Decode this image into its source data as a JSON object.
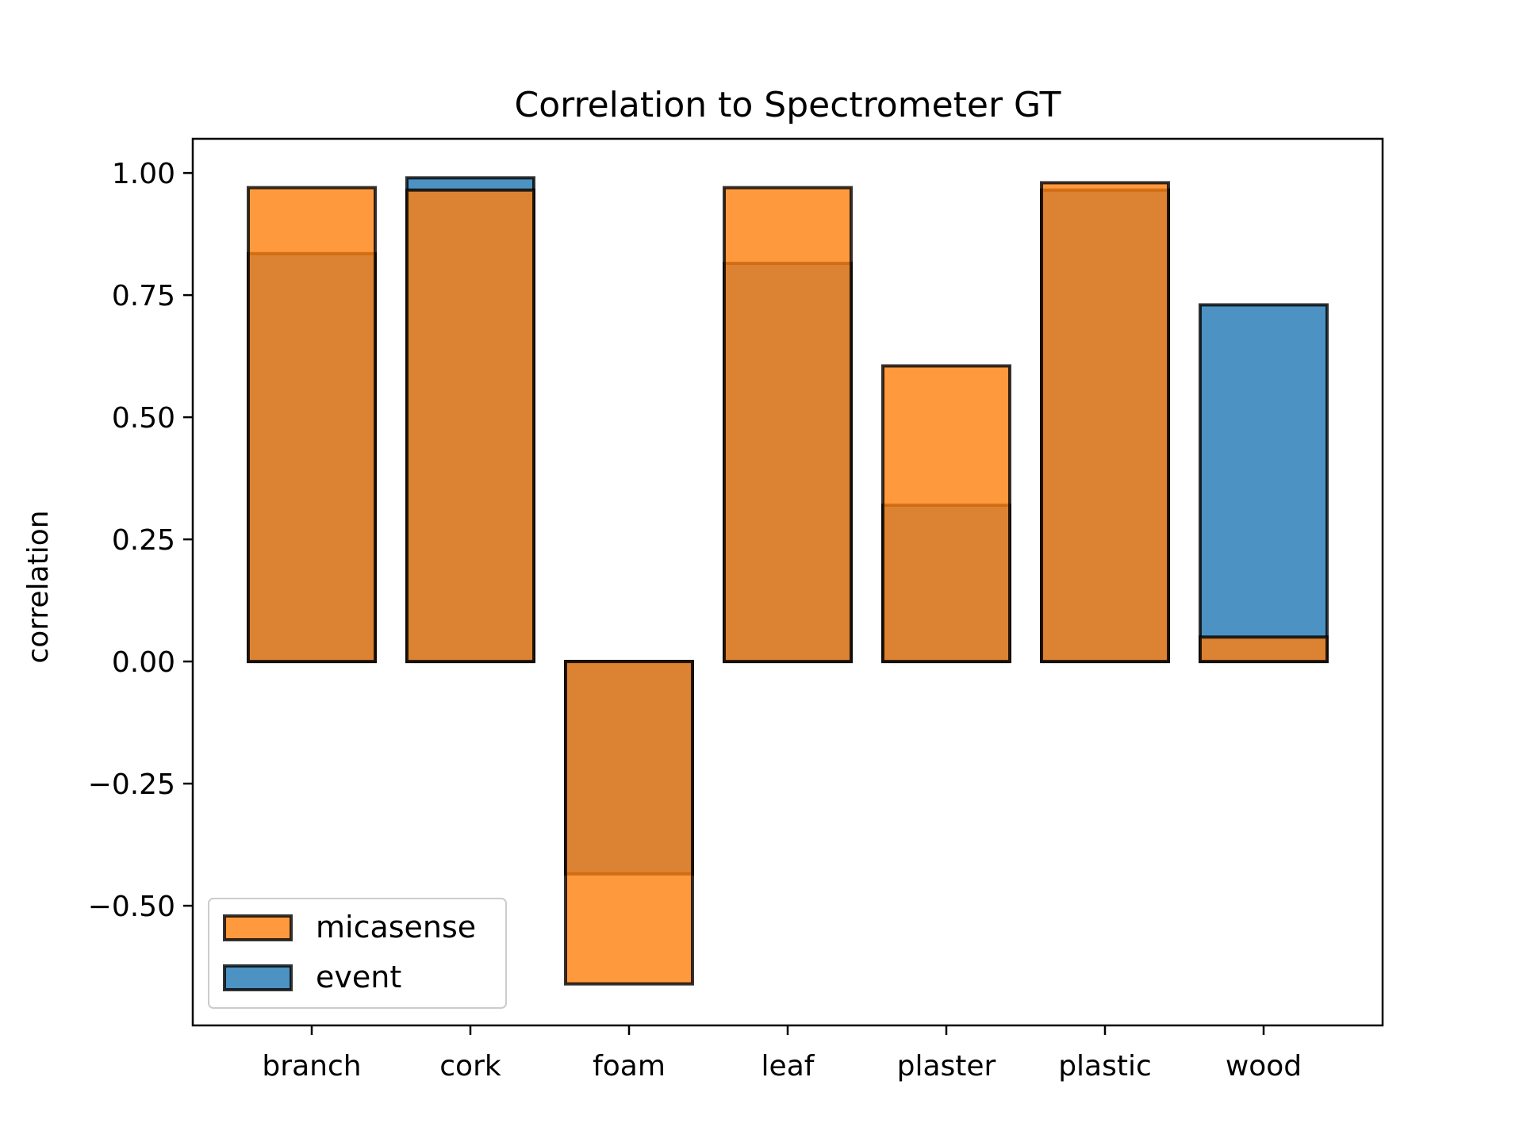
{
  "chart_data": {
    "type": "bar",
    "title": "Correlation to Spectrometer GT",
    "xlabel": "",
    "ylabel": "correlation",
    "categories": [
      "branch",
      "cork",
      "foam",
      "leaf",
      "plaster",
      "plastic",
      "wood"
    ],
    "series": [
      {
        "name": "micasense",
        "values": [
          0.97,
          0.965,
          -0.66,
          0.97,
          0.605,
          0.98,
          0.05
        ],
        "color": "#ff7f0e"
      },
      {
        "name": "event",
        "values": [
          0.835,
          0.99,
          -0.435,
          0.815,
          0.32,
          0.965,
          0.73
        ],
        "color": "#1f77b4"
      }
    ],
    "ylim": [
      -0.745,
      1.07
    ],
    "yticks": [
      1.0,
      0.75,
      0.5,
      0.25,
      0.0,
      -0.25,
      -0.5
    ],
    "ytick_labels": [
      "1.00",
      "0.75",
      "0.50",
      "0.25",
      "0.00",
      "−0.25",
      "−0.50"
    ],
    "legend_position": "lower-left",
    "grid": false
  }
}
